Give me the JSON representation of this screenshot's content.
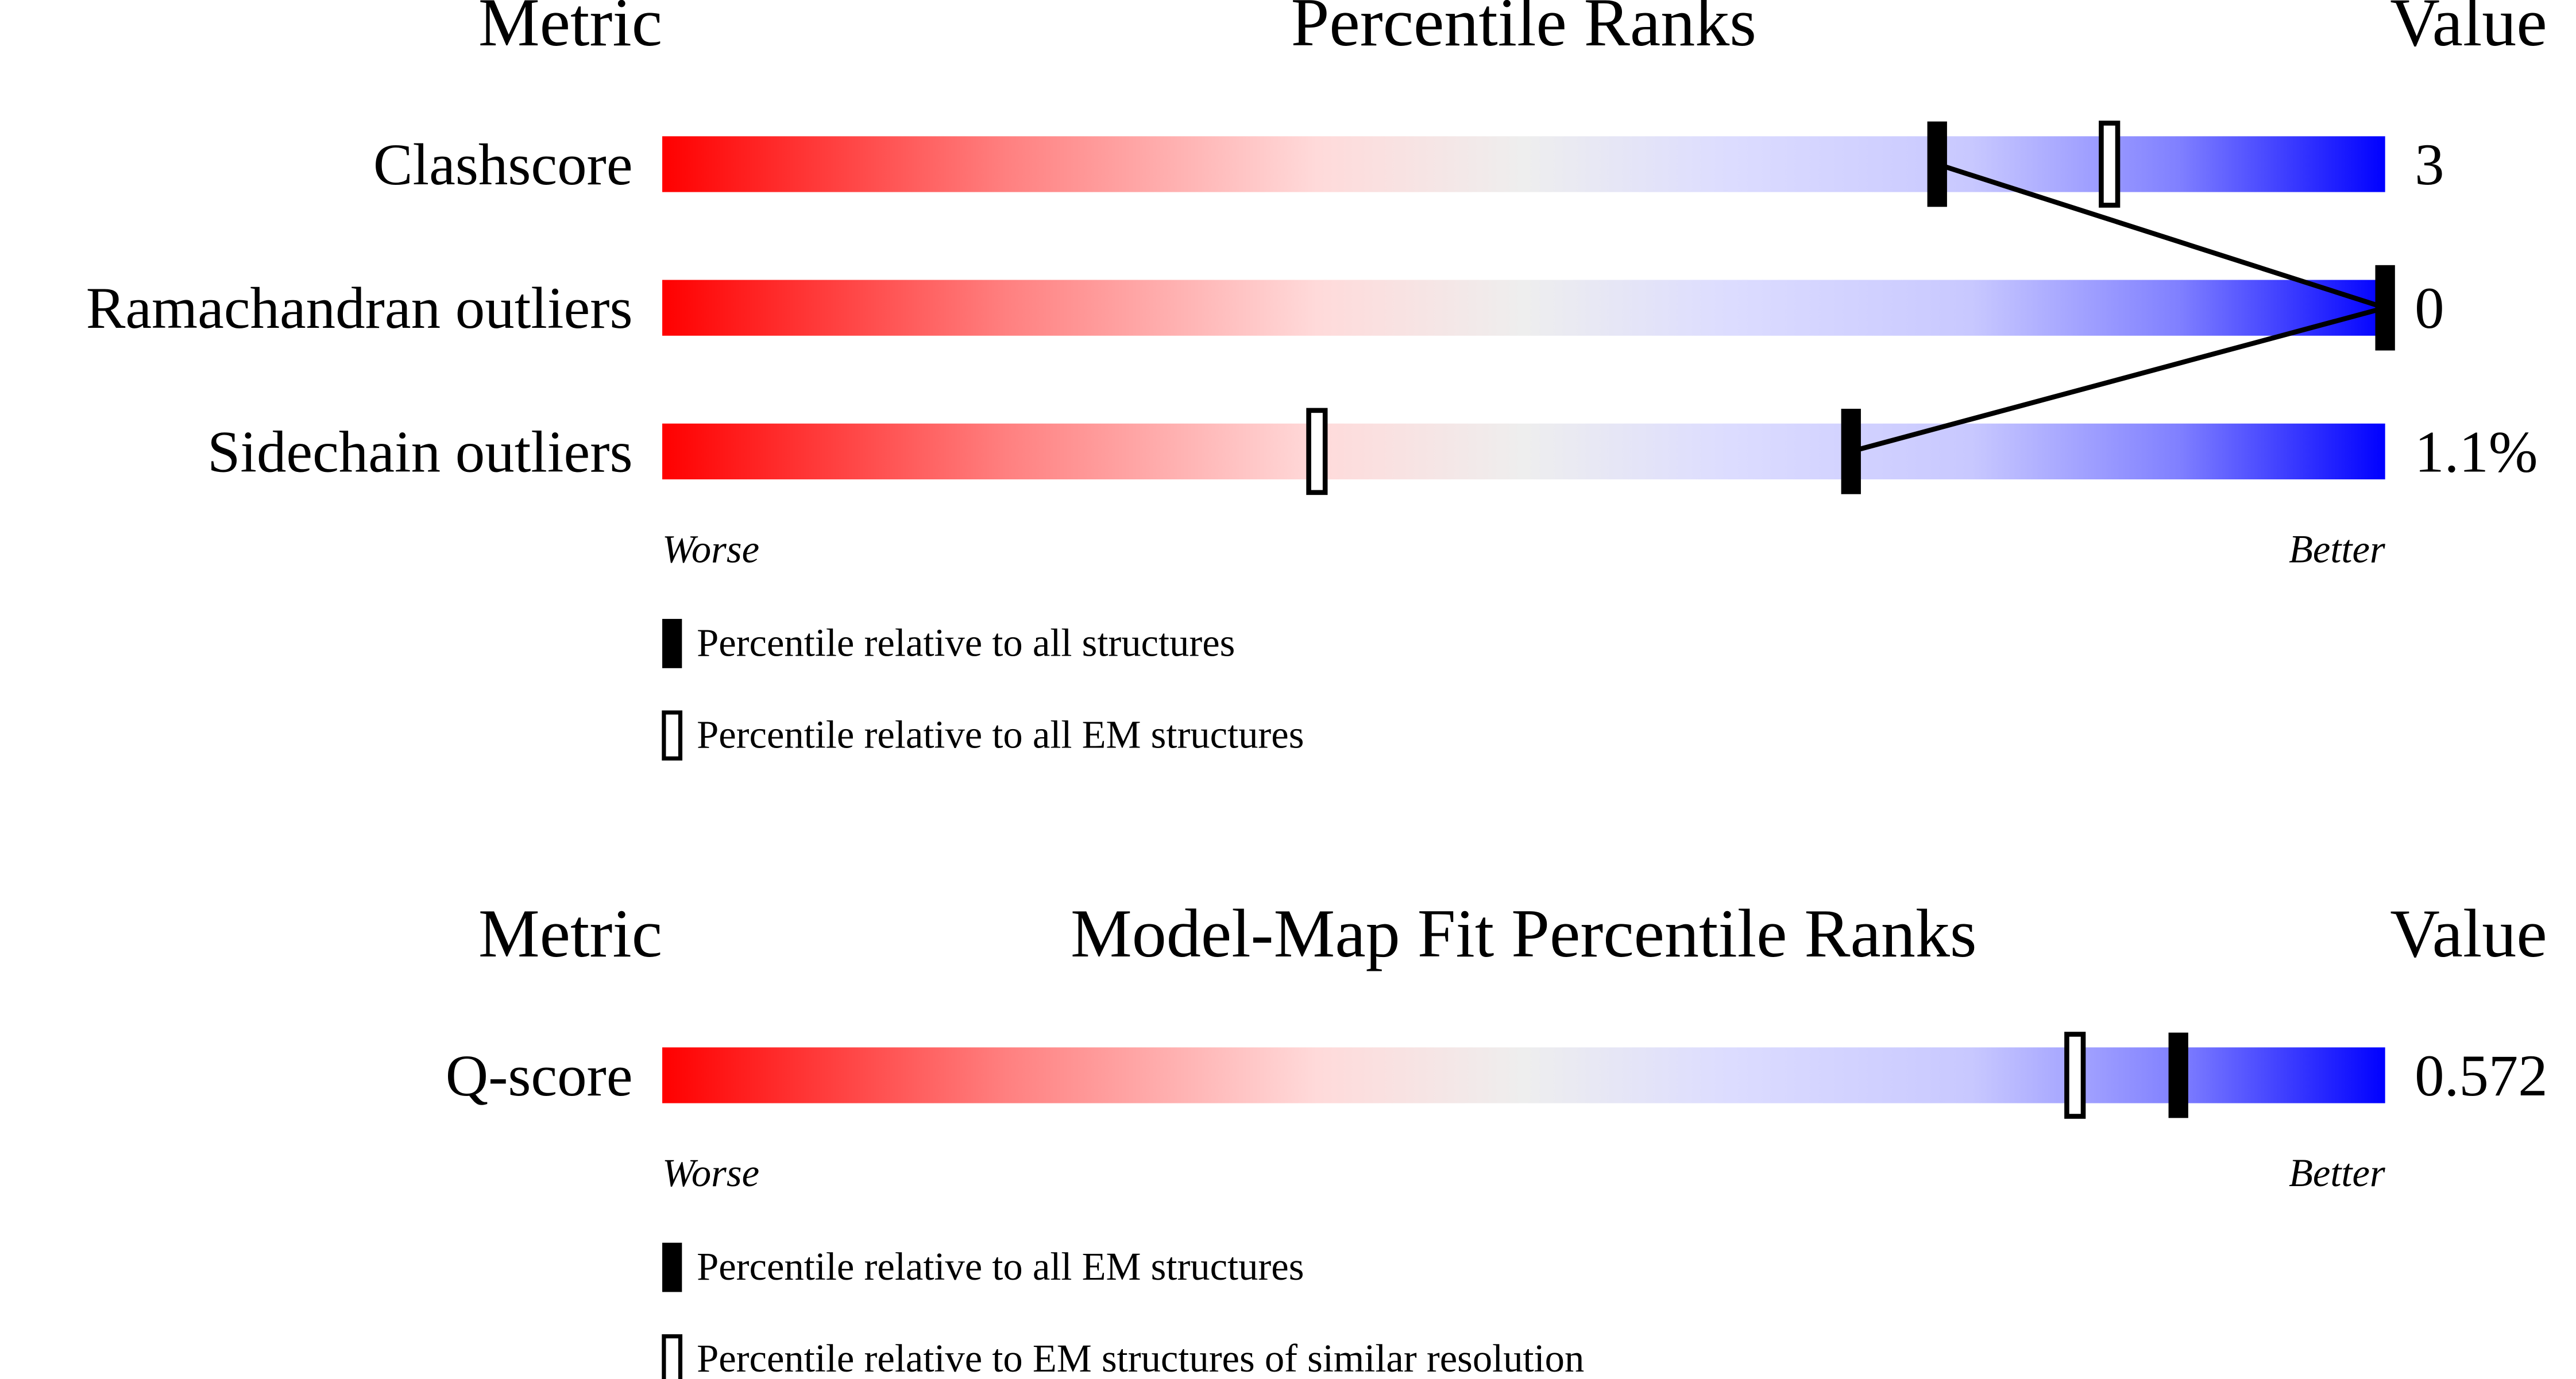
{
  "panels": [
    {
      "header": {
        "metric": "Metric",
        "title": "Percentile Ranks",
        "value": "Value"
      },
      "scale": [
        0,
        100
      ],
      "rows": [
        {
          "label": "Clashscore",
          "value": "3",
          "percentiles": [
            74,
            84
          ]
        },
        {
          "label": "Ramachandran outliers",
          "value": "0",
          "percentiles": [
            100
          ]
        },
        {
          "label": "Sidechain outliers",
          "value": "1.1%",
          "percentiles": [
            69,
            38
          ]
        }
      ],
      "axis": {
        "worse": "Worse",
        "better": "Better"
      },
      "legend": [
        "Percentile relative to all structures",
        "Percentile relative to all EM structures"
      ]
    },
    {
      "header": {
        "metric": "Metric",
        "title": "Model-Map Fit Percentile Ranks",
        "value": "Value"
      },
      "scale": [
        0,
        100
      ],
      "rows": [
        {
          "label": "Q-score",
          "value": "0.572",
          "percentiles": [
            88,
            82
          ]
        }
      ],
      "axis": {
        "worse": "Worse",
        "better": "Better"
      },
      "legend": [
        "Percentile relative to all EM structures",
        "Percentile relative to EM structures of similar resolution"
      ]
    }
  ]
}
